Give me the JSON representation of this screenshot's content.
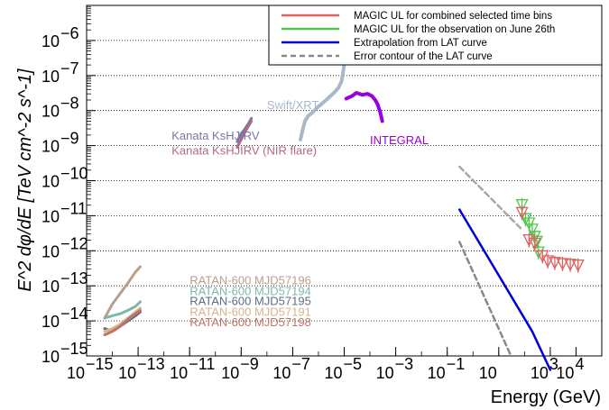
{
  "chart_data": {
    "type": "scatter",
    "xlabel": "Energy (GeV)",
    "ylabel": "E^2 dφ/dE  [TeV cm^-2 s^-1]",
    "x_scale": "log",
    "y_scale": "log",
    "xlim": [
      1e-15,
      100000
    ],
    "ylim": [
      1e-15,
      1e-05
    ],
    "grid": "horizontal dotted",
    "legend_position": "top-right",
    "x_ticks": [
      {
        "label": "10",
        "exp": "−15",
        "value": 1e-15
      },
      {
        "label": "10",
        "exp": "−13",
        "value": 1e-13
      },
      {
        "label": "10",
        "exp": "−11",
        "value": 1e-11
      },
      {
        "label": "10",
        "exp": "−9",
        "value": 1e-09
      },
      {
        "label": "10",
        "exp": "−7",
        "value": 1e-07
      },
      {
        "label": "10",
        "exp": "−5",
        "value": 1e-05
      },
      {
        "label": "10",
        "exp": "−3",
        "value": 0.001
      },
      {
        "label": "10",
        "exp": "−1",
        "value": 0.1
      },
      {
        "label": "10",
        "exp": "",
        "value": 10
      },
      {
        "label": "10",
        "exp": "3",
        "value": 1000
      },
      {
        "label": "10",
        "exp": "4",
        "value": 10000
      }
    ],
    "y_ticks": [
      {
        "label": "10",
        "exp": "−15",
        "value": 1e-15
      },
      {
        "label": "10",
        "exp": "−14",
        "value": 1e-14
      },
      {
        "label": "10",
        "exp": "−13",
        "value": 1e-13
      },
      {
        "label": "10",
        "exp": "−12",
        "value": 1e-12
      },
      {
        "label": "10",
        "exp": "−11",
        "value": 1e-11
      },
      {
        "label": "10",
        "exp": "−10",
        "value": 1e-10
      },
      {
        "label": "10",
        "exp": "−9",
        "value": 1e-09
      },
      {
        "label": "10",
        "exp": "−8",
        "value": 1e-08
      },
      {
        "label": "10",
        "exp": "−7",
        "value": 1e-07
      },
      {
        "label": "10",
        "exp": "−6",
        "value": 1e-06
      }
    ],
    "legend": [
      {
        "label": "MAGIC UL for combined selected time bins",
        "color": "#e06060",
        "dash": "solid"
      },
      {
        "label": "MAGIC UL for the observation on June 26th",
        "color": "#4ec94e",
        "dash": "solid"
      },
      {
        "label": "Extrapolation from LAT curve",
        "color": "#0000dd",
        "dash": "solid"
      },
      {
        "label": "Error contour of the LAT curve",
        "color": "#888888",
        "dash": "dashed"
      }
    ],
    "series": [
      {
        "name": "Kanata KsHJIRV",
        "color": "#7777a8",
        "x": [
          7e-10,
          1e-09,
          1.4e-09,
          2e-09,
          2.5e-09
        ],
        "y": [
          1.3e-09,
          2.2e-09,
          3e-09,
          4.5e-09,
          6e-09
        ]
      },
      {
        "name": "Kanata KsHJIRV (NIR flare)",
        "color": "#b06a7a",
        "x": [
          7e-10,
          1e-09,
          1.4e-09,
          2e-09,
          2.5e-09
        ],
        "y": [
          9e-10,
          1.5e-09,
          2.4e-09,
          3.8e-09,
          5e-09
        ]
      },
      {
        "name": "Swift/XRT",
        "color": "#a8b8c8",
        "x": [
          2e-07,
          2.5e-07,
          3e-07,
          4e-07,
          6e-07,
          1e-06,
          2e-06,
          4e-06,
          6e-06,
          8e-06,
          1e-05
        ],
        "y": [
          1.5e-09,
          3e-09,
          5e-09,
          7e-09,
          9e-09,
          1.3e-08,
          2e-08,
          3.2e-08,
          4.5e-08,
          7e-08,
          2e-07
        ]
      },
      {
        "name": "INTEGRAL",
        "color": "#9900dd",
        "x": [
          1.2e-05,
          2e-05,
          3e-05,
          5e-05,
          8e-05,
          0.00012,
          0.00016,
          0.0002,
          0.00025,
          0.0003
        ],
        "y": [
          2.2e-08,
          2.6e-08,
          3.2e-08,
          2.8e-08,
          3e-08,
          2.6e-08,
          2e-08,
          1.5e-08,
          9e-09,
          5e-09
        ]
      },
      {
        "name": "RATAN-600 MJD57196",
        "color": "#b8a08a",
        "x": [
          5e-15,
          1e-14,
          2e-14,
          4e-14,
          8e-14,
          1.2e-13
        ],
        "y": [
          1.2e-14,
          3e-14,
          6e-14,
          1.2e-13,
          2.5e-13,
          3.5e-13
        ]
      },
      {
        "name": "RATAN-600 MJD57194",
        "color": "#7cb8a8",
        "x": [
          5e-15,
          1e-14,
          2e-14,
          4e-14,
          8e-14,
          1.2e-13
        ],
        "y": [
          1.2e-14,
          1.4e-14,
          1.6e-14,
          2e-14,
          2.6e-14,
          3.5e-14
        ]
      },
      {
        "name": "RATAN-600 MJD57195",
        "color": "#5a6e82",
        "x": [
          5e-15,
          1e-14,
          2e-14,
          4e-14,
          8e-14,
          1.2e-13
        ],
        "y": [
          6e-15,
          5e-15,
          7e-15,
          1e-14,
          1.4e-14,
          1.8e-14
        ]
      },
      {
        "name": "RATAN-600 MJD57191",
        "color": "#d8b48a",
        "x": [
          5e-15,
          1e-14,
          2e-14,
          4e-14,
          8e-14,
          1.2e-13
        ],
        "y": [
          5e-15,
          6e-15,
          8e-15,
          1.2e-14,
          1.8e-14,
          2.3e-14
        ]
      },
      {
        "name": "RATAN-600 MJD57198",
        "color": "#c07468",
        "x": [
          5e-15,
          1e-14,
          2e-14,
          4e-14,
          8e-14,
          1.2e-13
        ],
        "y": [
          4e-15,
          5e-15,
          7e-15,
          1.1e-14,
          1.6e-14,
          2e-14
        ]
      },
      {
        "name": "Extrapolation from LAT curve",
        "color": "#0000dd",
        "x": [
          0.3,
          200,
          1000
        ],
        "y": [
          1.5e-11,
          5e-15,
          4e-16
        ]
      },
      {
        "name": "Error contour of the LAT curve (upper)",
        "color": "#a8a8a8",
        "x": [
          0.3,
          80
        ],
        "y": [
          2.5e-10,
          4e-12
        ]
      },
      {
        "name": "Error contour of the LAT curve (lower)",
        "color": "#888888",
        "x": [
          0.3,
          30
        ],
        "y": [
          1.8e-12,
          1e-15
        ]
      },
      {
        "name": "MAGIC UL for the observation on June 26th",
        "color": "#4ec94e",
        "x": [
          80,
          110,
          150,
          200,
          250,
          300,
          350
        ],
        "y": [
          2e-11,
          8e-12,
          6e-12,
          4e-12,
          2.5e-12,
          1.8e-12,
          9e-13
        ]
      },
      {
        "name": "MAGIC UL for combined selected time bins",
        "color": "#e06060",
        "x": [
          80,
          150,
          250,
          500,
          800,
          1500,
          3000,
          6000,
          12000
        ],
        "y": [
          1.2e-11,
          2e-12,
          1.6e-12,
          7e-13,
          5e-13,
          4.5e-13,
          4.2e-13,
          4e-13,
          3.8e-13
        ]
      }
    ],
    "annotations": [
      {
        "text": "Swift/XRT",
        "color": "#a8b8c8",
        "x": 1e-08,
        "y": 1.1e-08
      },
      {
        "text": "INTEGRAL",
        "color": "#9900dd",
        "x": 0.0001,
        "y": 1.1e-09
      },
      {
        "text": "Kanata KsHJIRV",
        "color": "#7777a8",
        "x": 2e-12,
        "y": 1.5e-09
      },
      {
        "text": "Kanata KsHJIRV (NIR flare)",
        "color": "#b06a7a",
        "x": 2e-12,
        "y": 5.5e-10
      },
      {
        "text": "RATAN-600 MJD57196",
        "color": "#b8a08a",
        "x": 1e-11,
        "y": 1.1e-13
      },
      {
        "text": "RATAN-600 MJD57194",
        "color": "#7cb8a8",
        "x": 1e-11,
        "y": 5.5e-14
      },
      {
        "text": "RATAN-600 MJD57195",
        "color": "#5a6e82",
        "x": 1e-11,
        "y": 2.8e-14
      },
      {
        "text": "RATAN-600 MJD57191",
        "color": "#d8b48a",
        "x": 1e-11,
        "y": 1.4e-14
      },
      {
        "text": "RATAN-600 MJD57198",
        "color": "#c07468",
        "x": 1e-11,
        "y": 7e-15
      }
    ]
  }
}
